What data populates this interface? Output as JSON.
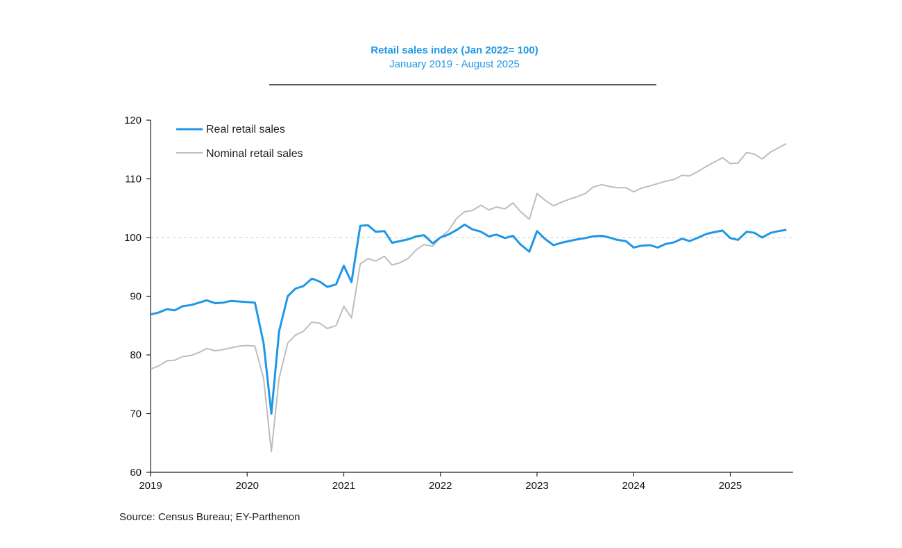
{
  "colors": {
    "real": "#1f97e6",
    "nominal": "#bdbdbd",
    "title": "#1f97e6",
    "axis": "#222222",
    "reference": "#c7d4e8"
  },
  "chart_data": {
    "type": "line",
    "title": "Retail sales index (Jan 2022= 100)",
    "subtitle": "January 2019 -   August 2025",
    "source": "Source: Census Bureau; EY-Parthenon",
    "ylim": [
      60,
      120
    ],
    "yticks": [
      60,
      70,
      80,
      90,
      100,
      110,
      120
    ],
    "xlim": [
      2019.0,
      2025.65
    ],
    "xticks": [
      "2019",
      "2020",
      "2021",
      "2022",
      "2023",
      "2024",
      "2025"
    ],
    "reference_line": 100,
    "grid": false,
    "legend": "top-left",
    "x": [
      2019.0,
      2019.08,
      2019.17,
      2019.25,
      2019.33,
      2019.42,
      2019.5,
      2019.58,
      2019.67,
      2019.75,
      2019.83,
      2019.92,
      2020.0,
      2020.08,
      2020.17,
      2020.25,
      2020.33,
      2020.42,
      2020.5,
      2020.58,
      2020.67,
      2020.75,
      2020.83,
      2020.92,
      2021.0,
      2021.08,
      2021.17,
      2021.25,
      2021.33,
      2021.42,
      2021.5,
      2021.58,
      2021.67,
      2021.75,
      2021.83,
      2021.92,
      2022.0,
      2022.08,
      2022.17,
      2022.25,
      2022.33,
      2022.42,
      2022.5,
      2022.58,
      2022.67,
      2022.75,
      2022.83,
      2022.92,
      2023.0,
      2023.08,
      2023.17,
      2023.25,
      2023.33,
      2023.42,
      2023.5,
      2023.58,
      2023.67,
      2023.75,
      2023.83,
      2023.92,
      2024.0,
      2024.08,
      2024.17,
      2024.25,
      2024.33,
      2024.42,
      2024.5,
      2024.58,
      2024.67,
      2024.75,
      2024.83,
      2024.92,
      2025.0,
      2025.08,
      2025.17,
      2025.25,
      2025.33,
      2025.42,
      2025.5,
      2025.58
    ],
    "series": [
      {
        "name": "Real retail sales",
        "values": [
          86.9,
          87.2,
          87.8,
          87.6,
          88.3,
          88.5,
          88.9,
          89.3,
          88.8,
          88.9,
          89.2,
          89.1,
          89.0,
          88.9,
          82.0,
          70.0,
          84.0,
          90.0,
          91.3,
          91.7,
          93.0,
          92.5,
          91.6,
          92.0,
          95.2,
          92.4,
          102.0,
          102.1,
          101.0,
          101.1,
          99.1,
          99.4,
          99.7,
          100.2,
          100.4,
          99.0,
          100.0,
          100.5,
          101.3,
          102.2,
          101.4,
          101.0,
          100.2,
          100.5,
          99.9,
          100.3,
          98.8,
          97.6,
          101.1,
          99.8,
          98.7,
          99.1,
          99.4,
          99.7,
          99.9,
          100.2,
          100.3,
          100.0,
          99.6,
          99.4,
          98.3,
          98.6,
          98.7,
          98.3,
          98.9,
          99.2,
          99.8,
          99.4,
          100.0,
          100.6,
          100.9,
          101.2,
          99.9,
          99.6,
          101.0,
          100.8,
          100.0,
          100.8,
          101.1,
          101.3
        ]
      },
      {
        "name": "Nominal retail sales",
        "values": [
          77.6,
          78.1,
          79.0,
          79.1,
          79.7,
          79.9,
          80.4,
          81.1,
          80.7,
          80.9,
          81.2,
          81.5,
          81.6,
          81.5,
          76.0,
          63.5,
          76.0,
          82.0,
          83.4,
          84.0,
          85.6,
          85.4,
          84.5,
          85.0,
          88.3,
          86.3,
          95.5,
          96.4,
          96.0,
          96.8,
          95.3,
          95.7,
          96.5,
          97.9,
          98.8,
          98.5,
          100.0,
          101.1,
          103.3,
          104.4,
          104.6,
          105.5,
          104.7,
          105.2,
          104.9,
          105.9,
          104.4,
          103.1,
          107.5,
          106.4,
          105.4,
          106.0,
          106.5,
          107.0,
          107.5,
          108.6,
          109.0,
          108.7,
          108.5,
          108.5,
          107.8,
          108.4,
          108.8,
          109.2,
          109.6,
          109.9,
          110.6,
          110.5,
          111.3,
          112.1,
          112.8,
          113.6,
          112.6,
          112.7,
          114.5,
          114.2,
          113.4,
          114.6,
          115.3,
          116.0
        ]
      }
    ]
  }
}
